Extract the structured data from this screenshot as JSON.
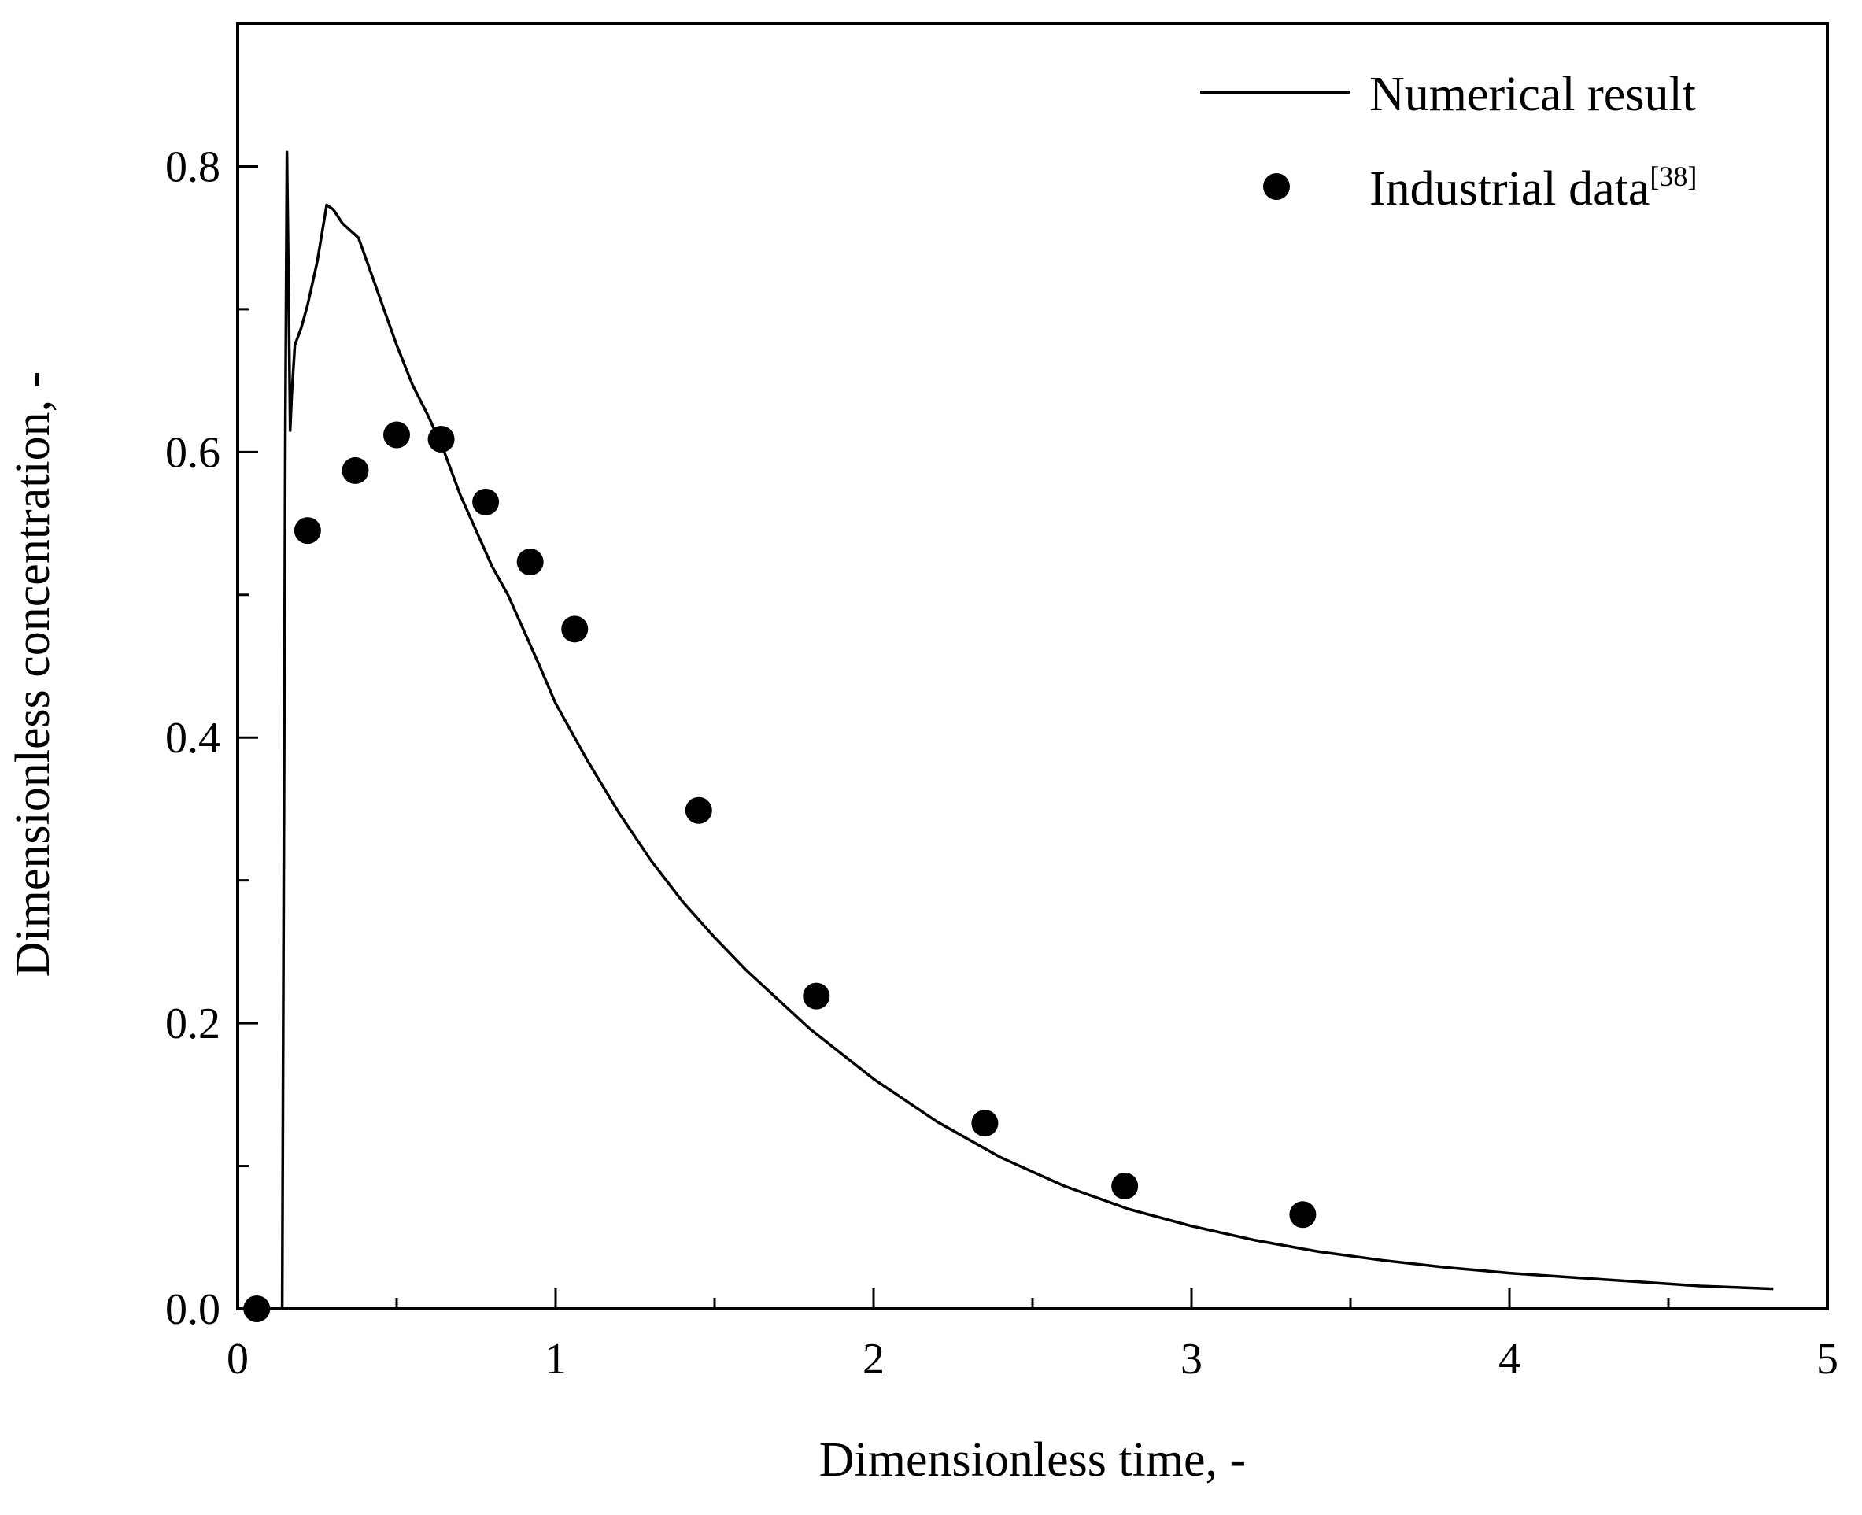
{
  "chart_data": {
    "type": "scatter",
    "title": "",
    "xlabel": "Dimensionless time, -",
    "ylabel": "Dimensionless concentration, -",
    "xlim": [
      0,
      5
    ],
    "ylim": [
      0,
      0.9
    ],
    "xticks": [
      0,
      1,
      2,
      3,
      4,
      5
    ],
    "xtick_labels": [
      "0",
      "1",
      "2",
      "3",
      "4",
      "5"
    ],
    "yticks": [
      0.0,
      0.2,
      0.4,
      0.6,
      0.8
    ],
    "ytick_labels": [
      "0.0",
      "0.2",
      "0.4",
      "0.6",
      "0.8"
    ],
    "grid": false,
    "legend_position": "top-right",
    "series": [
      {
        "name": "Numerical result",
        "kind": "line",
        "color": "#000000",
        "x": [
          0.0,
          0.14,
          0.15,
          0.155,
          0.16,
          0.165,
          0.17,
          0.18,
          0.2,
          0.22,
          0.25,
          0.28,
          0.3,
          0.33,
          0.38,
          0.42,
          0.46,
          0.5,
          0.55,
          0.6,
          0.65,
          0.7,
          0.75,
          0.8,
          0.85,
          0.9,
          0.95,
          1.0,
          1.1,
          1.2,
          1.3,
          1.4,
          1.5,
          1.6,
          1.8,
          2.0,
          2.2,
          2.4,
          2.6,
          2.8,
          3.0,
          3.2,
          3.4,
          3.6,
          3.8,
          4.0,
          4.2,
          4.4,
          4.6,
          4.83
        ],
        "y": [
          0.0,
          0.0,
          0.62,
          0.81,
          0.72,
          0.615,
          0.64,
          0.675,
          0.687,
          0.703,
          0.733,
          0.773,
          0.77,
          0.76,
          0.75,
          0.725,
          0.7,
          0.675,
          0.647,
          0.625,
          0.6,
          0.57,
          0.545,
          0.52,
          0.5,
          0.475,
          0.45,
          0.424,
          0.384,
          0.347,
          0.314,
          0.285,
          0.26,
          0.237,
          0.196,
          0.161,
          0.131,
          0.106,
          0.086,
          0.07,
          0.058,
          0.048,
          0.04,
          0.034,
          0.029,
          0.025,
          0.022,
          0.019,
          0.016,
          0.014
        ]
      },
      {
        "name": "Industrial data",
        "name_superscript": "[38]",
        "kind": "scatter",
        "color": "#000000",
        "x": [
          0.06,
          0.22,
          0.37,
          0.5,
          0.64,
          0.78,
          0.92,
          1.06,
          1.45,
          1.82,
          2.35,
          2.79,
          3.35
        ],
        "y": [
          0.0,
          0.545,
          0.587,
          0.612,
          0.609,
          0.565,
          0.523,
          0.476,
          0.349,
          0.219,
          0.13,
          0.086,
          0.066
        ]
      }
    ]
  }
}
